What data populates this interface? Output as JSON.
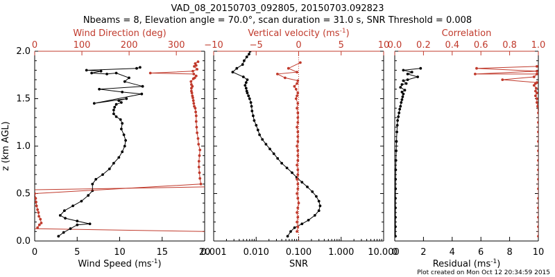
{
  "chart_data": {
    "type": "line",
    "title_line1": "VAD_08_20150703_092805, 20150703.092823",
    "title_line2": "Nbeams = 8, Elevation angle = 70.0°, scan duration = 31.0 s, SNR Threshold = 0.008",
    "footer": "Plot created on Mon Oct 12 20:34:59 2015",
    "ylabel": "z (km AGL)",
    "ylim": [
      0,
      2
    ],
    "yticks": [
      "0.0",
      "0.5",
      "1.0",
      "1.5",
      "2.0"
    ],
    "colors": {
      "black": "#000000",
      "red": "#c0392b"
    },
    "panels": [
      {
        "name": "wind",
        "bottom_label": "Wind Speed (ms",
        "bottom_label_sup": "-1",
        "bottom_label_end": ")",
        "top_label": "Wind Direction (deg)",
        "bottom_xlim": [
          0,
          20
        ],
        "top_xlim": [
          0,
          360
        ],
        "bottom_ticks": [
          {
            "v": 0,
            "t": "0"
          },
          {
            "v": 5,
            "t": "5"
          },
          {
            "v": 10,
            "t": "10"
          },
          {
            "v": 15,
            "t": "15"
          },
          {
            "v": 20,
            "t": "20"
          }
        ],
        "top_ticks": [
          {
            "v": 0,
            "t": "0"
          },
          {
            "v": 100,
            "t": "100"
          },
          {
            "v": 200,
            "t": "200"
          },
          {
            "v": 300,
            "t": "300"
          }
        ],
        "series": [
          {
            "name": "Wind Speed",
            "axis": "bottom",
            "color": "#000000",
            "x": [
              2.8,
              3.4,
              4.2,
              5.0,
              6.5,
              5.0,
              3.6,
              3.0,
              3.5,
              4.5,
              5.5,
              6.3,
              6.8,
              6.8,
              7.2,
              8.0,
              8.8,
              9.3,
              9.9,
              10.3,
              10.6,
              10.7,
              10.5,
              10.2,
              10.3,
              10.1,
              9.6,
              9.3,
              9.3,
              9.4,
              9.6,
              10.2,
              9.9,
              10.8,
              7.0,
              12.6,
              10.3,
              7.6,
              12.7,
              10.6,
              11.1,
              9.6,
              8.5,
              6.7,
              7.8,
              6.1,
              12.0,
              12.4
            ],
            "y": [
              0.05,
              0.09,
              0.13,
              0.17,
              0.18,
              0.21,
              0.24,
              0.27,
              0.32,
              0.37,
              0.42,
              0.48,
              0.53,
              0.6,
              0.65,
              0.7,
              0.76,
              0.82,
              0.88,
              0.94,
              1.0,
              1.06,
              1.12,
              1.18,
              1.24,
              1.28,
              1.31,
              1.34,
              1.38,
              1.41,
              1.44,
              1.46,
              1.48,
              1.5,
              1.45,
              1.55,
              1.57,
              1.6,
              1.63,
              1.68,
              1.72,
              1.77,
              1.76,
              1.77,
              1.79,
              1.8,
              1.82,
              1.83
            ]
          },
          {
            "name": "Wind Direction",
            "axis": "top",
            "color": "#c0392b",
            "x": [
              6,
              10,
              14,
              12,
              9,
              8,
              6,
              4,
              3,
              2,
              0,
              352,
              350,
              349,
              348,
              348,
              349,
              350,
              347,
              346,
              344,
              343,
              342,
              342,
              341,
              340,
              338,
              337,
              336,
              335,
              334,
              333,
              332,
              332,
              334,
              332,
              331,
              336,
              339,
              342,
              337,
              245,
              335,
              344,
              338,
              342,
              340,
              346
            ],
            "y": [
              0.14,
              0.17,
              0.19,
              0.23,
              0.26,
              0.3,
              0.33,
              0.37,
              0.41,
              0.45,
              0.5,
              0.6,
              0.66,
              0.72,
              0.78,
              0.84,
              0.9,
              0.96,
              1.02,
              1.08,
              1.14,
              1.2,
              1.26,
              1.32,
              1.36,
              1.4,
              1.42,
              1.45,
              1.48,
              1.51,
              1.53,
              1.56,
              1.58,
              1.61,
              1.63,
              1.65,
              1.68,
              1.71,
              1.72,
              1.74,
              1.76,
              1.77,
              1.79,
              1.81,
              1.84,
              1.85,
              1.87,
              1.89
            ]
          }
        ],
        "hlines": [
          {
            "y_left": 0.54,
            "y_right": 0.57
          },
          {
            "y_left": 0.13,
            "y_right": 0.1
          }
        ]
      },
      {
        "name": "vertical",
        "bottom_label": "SNR",
        "top_label": "Vertical velocity (ms",
        "top_label_sup": "-1",
        "top_label_end": ")",
        "bottom_xlim_log": [
          0.001,
          10
        ],
        "top_xlim": [
          -10,
          10
        ],
        "bottom_ticks": [
          {
            "v": 0.001,
            "t": "0.001"
          },
          {
            "v": 0.01,
            "t": "0.010"
          },
          {
            "v": 0.1,
            "t": "0.100"
          },
          {
            "v": 1,
            "t": "1.000"
          },
          {
            "v": 10,
            "t": "10.000"
          }
        ],
        "top_ticks": [
          {
            "v": -10,
            "t": "−10"
          },
          {
            "v": -5,
            "t": "−5"
          },
          {
            "v": 0,
            "t": "0"
          },
          {
            "v": 5,
            "t": "5"
          },
          {
            "v": 10,
            "t": "10"
          }
        ],
        "zero_line": 0,
        "series": [
          {
            "name": "SNR",
            "axis": "bottom",
            "color": "#000000",
            "x": [
              0.055,
              0.065,
              0.08,
              0.12,
              0.17,
              0.24,
              0.3,
              0.32,
              0.3,
              0.26,
              0.21,
              0.16,
              0.12,
              0.09,
              0.07,
              0.053,
              0.04,
              0.032,
              0.026,
              0.021,
              0.017,
              0.014,
              0.012,
              0.011,
              0.01,
              0.009,
              0.0085,
              0.008,
              0.0078,
              0.0075,
              0.007,
              0.0066,
              0.0062,
              0.006,
              0.0058,
              0.0055,
              0.0058,
              0.0062,
              0.005,
              0.0028,
              0.0035,
              0.0048,
              0.0052,
              0.006,
              0.0068,
              0.0072
            ],
            "y": [
              0.05,
              0.1,
              0.14,
              0.18,
              0.22,
              0.27,
              0.32,
              0.37,
              0.42,
              0.47,
              0.52,
              0.57,
              0.62,
              0.67,
              0.72,
              0.77,
              0.82,
              0.87,
              0.92,
              0.97,
              1.02,
              1.07,
              1.12,
              1.17,
              1.22,
              1.27,
              1.32,
              1.37,
              1.42,
              1.46,
              1.5,
              1.53,
              1.56,
              1.58,
              1.61,
              1.64,
              1.67,
              1.7,
              1.73,
              1.78,
              1.82,
              1.86,
              1.9,
              1.94,
              1.97,
              2.0
            ]
          },
          {
            "name": "Vertical velocity",
            "axis": "top",
            "color": "#c0392b",
            "x": [
              -0.2,
              -0.1,
              -0.2,
              -0.1,
              -0.2,
              -0.1,
              0.0,
              -0.1,
              -0.2,
              -0.1,
              -0.1,
              -0.2,
              -0.1,
              -0.1,
              -0.2,
              -0.1,
              -0.1,
              -0.1,
              -0.2,
              -0.1,
              -0.1,
              -0.1,
              -0.2,
              -0.1,
              -0.1,
              -0.1,
              -0.2,
              -0.1,
              -0.3,
              -0.2,
              -0.1,
              -0.3,
              -0.5,
              -0.2,
              -0.1,
              -1.6,
              -2.5,
              -0.2,
              -1.2,
              0.2
            ],
            "y": [
              0.1,
              0.15,
              0.2,
              0.25,
              0.3,
              0.35,
              0.4,
              0.45,
              0.5,
              0.55,
              0.6,
              0.65,
              0.7,
              0.75,
              0.8,
              0.85,
              0.9,
              0.95,
              1.0,
              1.05,
              1.1,
              1.15,
              1.2,
              1.25,
              1.3,
              1.35,
              1.4,
              1.45,
              1.5,
              1.53,
              1.56,
              1.6,
              1.63,
              1.66,
              1.69,
              1.72,
              1.76,
              1.78,
              1.82,
              1.88
            ]
          }
        ]
      },
      {
        "name": "correlation",
        "bottom_label": "Residual (ms",
        "bottom_label_sup": "-1",
        "bottom_label_end": ")",
        "top_label": "Correlation",
        "bottom_xlim": [
          0,
          10
        ],
        "top_xlim": [
          0,
          1
        ],
        "bottom_ticks": [
          {
            "v": 0,
            "t": "0"
          },
          {
            "v": 2,
            "t": "2"
          },
          {
            "v": 4,
            "t": "4"
          },
          {
            "v": 6,
            "t": "6"
          },
          {
            "v": 8,
            "t": "8"
          },
          {
            "v": 10,
            "t": "10"
          }
        ],
        "top_ticks": [
          {
            "v": 0,
            "t": "0.0"
          },
          {
            "v": 0.2,
            "t": "0.2"
          },
          {
            "v": 0.4,
            "t": "0.4"
          },
          {
            "v": 0.6,
            "t": "0.6"
          },
          {
            "v": 0.8,
            "t": "0.8"
          },
          {
            "v": 1.0,
            "t": "1.0"
          }
        ],
        "series": [
          {
            "name": "Residual",
            "axis": "bottom",
            "color": "#000000",
            "x": [
              0.05,
              0.05,
              0.05,
              0.05,
              0.05,
              0.06,
              0.06,
              0.07,
              0.08,
              0.1,
              0.12,
              0.15,
              0.18,
              0.2,
              0.25,
              0.3,
              0.35,
              0.4,
              0.45,
              0.5,
              0.55,
              0.6,
              0.5,
              0.7,
              0.4,
              0.5,
              0.8,
              0.6,
              0.9,
              1.6,
              0.9,
              1.2,
              0.6,
              1.8
            ],
            "y": [
              0.05,
              0.15,
              0.25,
              0.35,
              0.45,
              0.55,
              0.65,
              0.75,
              0.85,
              0.95,
              1.05,
              1.15,
              1.22,
              1.27,
              1.31,
              1.35,
              1.39,
              1.42,
              1.46,
              1.49,
              1.52,
              1.55,
              1.57,
              1.59,
              1.62,
              1.65,
              1.66,
              1.69,
              1.7,
              1.73,
              1.76,
              1.78,
              1.8,
              1.82
            ]
          },
          {
            "name": "Correlation",
            "axis": "top",
            "color": "#c0392b",
            "x": [
              1.0,
              1.0,
              1.0,
              1.0,
              1.0,
              1.0,
              1.0,
              1.0,
              1.0,
              1.0,
              1.0,
              1.0,
              1.0,
              1.0,
              0.995,
              0.99,
              0.99,
              0.98,
              0.99,
              0.98,
              0.985,
              0.97,
              0.98,
              0.99,
              0.75,
              0.97,
              0.99,
              0.56,
              0.99,
              0.57,
              0.99
            ],
            "y": [
              0.05,
              0.15,
              0.25,
              0.35,
              0.45,
              0.55,
              0.65,
              0.75,
              0.85,
              0.95,
              1.05,
              1.15,
              1.25,
              1.35,
              1.42,
              1.46,
              1.5,
              1.53,
              1.56,
              1.58,
              1.61,
              1.64,
              1.66,
              1.67,
              1.7,
              1.73,
              1.76,
              1.76,
              1.79,
              1.82,
              1.84
            ]
          }
        ]
      }
    ]
  }
}
